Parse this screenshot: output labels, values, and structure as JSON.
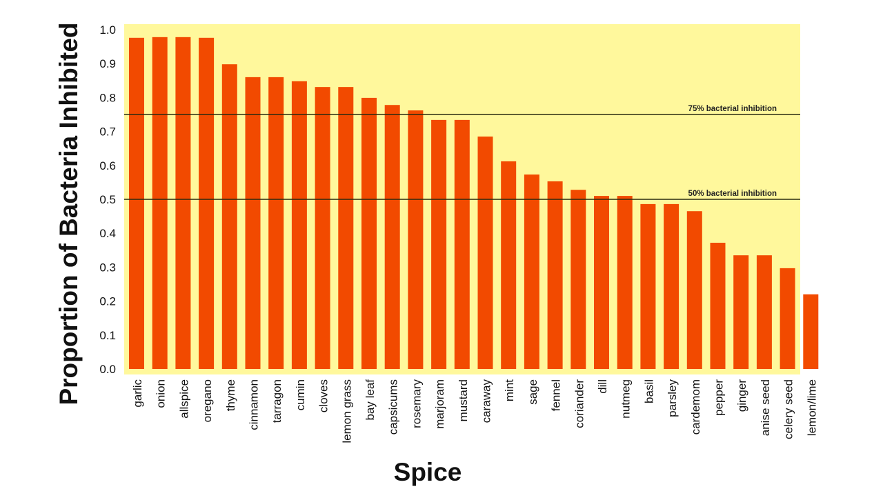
{
  "chart_data": {
    "type": "bar",
    "title": "",
    "xlabel": "Spice",
    "ylabel": "Proportion of Bacteria Inhibited",
    "ylim": [
      0,
      1.0
    ],
    "yticks": [
      "0.0",
      "0.1",
      "0.2",
      "0.3",
      "0.4",
      "0.5",
      "0.6",
      "0.7",
      "0.8",
      "0.9",
      "1.0"
    ],
    "grid": false,
    "categories": [
      "garlic",
      "onion",
      "allspice",
      "oregano",
      "thyme",
      "cinnamon",
      "tarragon",
      "cumin",
      "cloves",
      "lemon grass",
      "bay leaf",
      "capsicums",
      "rosemary",
      "marjoram",
      "mustard",
      "caraway",
      "mint",
      "sage",
      "fennel",
      "coriander",
      "dill",
      "nutmeg",
      "basil",
      "parsley",
      "cardemom",
      "pepper",
      "ginger",
      "anise seed",
      "celery seed",
      "lemon/lime"
    ],
    "values": [
      0.976,
      0.978,
      0.978,
      0.976,
      0.898,
      0.86,
      0.86,
      0.848,
      0.831,
      0.831,
      0.799,
      0.778,
      0.762,
      0.734,
      0.734,
      0.685,
      0.612,
      0.573,
      0.553,
      0.528,
      0.51,
      0.51,
      0.486,
      0.486,
      0.465,
      0.372,
      0.335,
      0.335,
      0.297,
      0.22
    ],
    "reference_lines": [
      {
        "value": 0.75,
        "label": "75% bacterial inhibition"
      },
      {
        "value": 0.5,
        "label": "50% bacterial inhibition"
      }
    ],
    "colors": {
      "bar": "#f24a00",
      "background": "#fff89c",
      "line": "#2a2a10"
    }
  }
}
